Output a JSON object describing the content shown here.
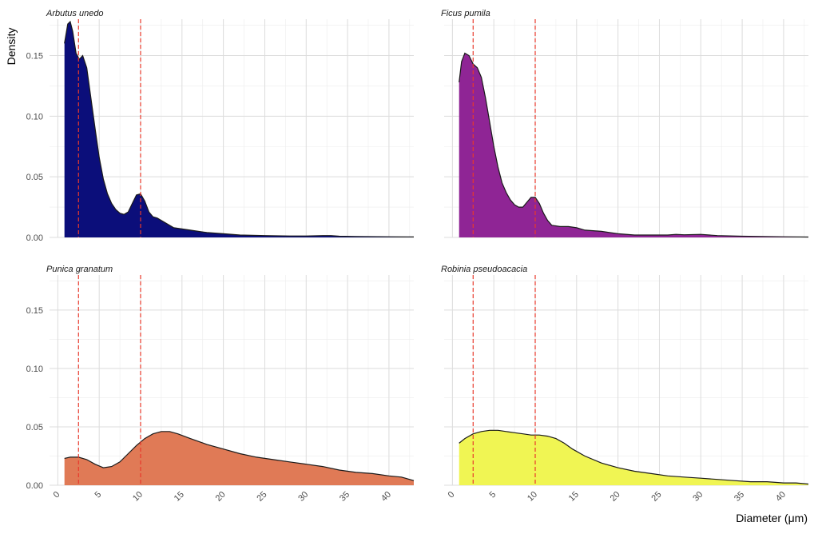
{
  "chart_data": {
    "type": "area",
    "xlabel": "Diameter (μm)",
    "ylabel": "Density",
    "xlim": [
      -1,
      43
    ],
    "ylim": [
      0,
      0.18
    ],
    "x_ticks": [
      0,
      5,
      10,
      15,
      20,
      25,
      30,
      35,
      40
    ],
    "y_ticks": [
      0.0,
      0.05,
      0.1,
      0.15
    ],
    "y_tick_labels": [
      "0.00",
      "0.05",
      "0.10",
      "0.15"
    ],
    "reference_lines_x": [
      2.5,
      10
    ],
    "reference_line_color": "#e8392b",
    "grid": true,
    "panels": [
      {
        "name": "Arbutus unedo",
        "fill": "#0b0e7a",
        "x": [
          0.8,
          1.2,
          1.5,
          1.8,
          2.2,
          2.6,
          3.0,
          3.5,
          4.0,
          4.5,
          5.0,
          5.5,
          6.0,
          6.5,
          7.0,
          7.5,
          8.0,
          8.5,
          9.0,
          9.5,
          10.0,
          10.5,
          11.0,
          11.5,
          12.0,
          13.0,
          14.0,
          16.0,
          18.0,
          20.0,
          22.0,
          25.0,
          28.0,
          30.0,
          32.0,
          33.0,
          34.0,
          36.0,
          40.0,
          43.0
        ],
        "y": [
          0.16,
          0.176,
          0.178,
          0.17,
          0.152,
          0.147,
          0.15,
          0.14,
          0.115,
          0.09,
          0.066,
          0.048,
          0.036,
          0.028,
          0.023,
          0.02,
          0.019,
          0.021,
          0.028,
          0.035,
          0.036,
          0.03,
          0.021,
          0.017,
          0.016,
          0.012,
          0.008,
          0.006,
          0.004,
          0.003,
          0.002,
          0.0015,
          0.0012,
          0.0012,
          0.0015,
          0.0015,
          0.001,
          0.0008,
          0.0005,
          0.0004
        ]
      },
      {
        "name": "Ficus pumila",
        "fill": "#8f2595",
        "x": [
          0.8,
          1.1,
          1.5,
          2.0,
          2.5,
          3.0,
          3.5,
          4.0,
          4.5,
          5.0,
          5.5,
          6.0,
          6.5,
          7.0,
          7.5,
          8.0,
          8.5,
          9.0,
          9.5,
          10.0,
          10.5,
          11.0,
          11.5,
          12.0,
          13.0,
          14.0,
          15.0,
          16.0,
          18.0,
          20.0,
          22.0,
          24.0,
          26.0,
          27.0,
          28.0,
          30.0,
          32.0,
          35.0,
          40.0,
          43.0
        ],
        "y": [
          0.128,
          0.145,
          0.152,
          0.15,
          0.143,
          0.14,
          0.132,
          0.115,
          0.095,
          0.075,
          0.058,
          0.045,
          0.037,
          0.031,
          0.027,
          0.025,
          0.025,
          0.029,
          0.033,
          0.033,
          0.028,
          0.02,
          0.014,
          0.01,
          0.009,
          0.009,
          0.008,
          0.006,
          0.005,
          0.003,
          0.002,
          0.002,
          0.002,
          0.0025,
          0.0022,
          0.0025,
          0.0015,
          0.001,
          0.0005,
          0.0003
        ]
      },
      {
        "name": "Punica granatum",
        "fill": "#e07a56",
        "x": [
          0.8,
          1.5,
          2.5,
          3.5,
          4.5,
          5.5,
          6.5,
          7.5,
          8.5,
          9.5,
          10.5,
          11.5,
          12.5,
          13.5,
          14.5,
          16.0,
          18.0,
          20.0,
          22.0,
          24.0,
          26.0,
          28.0,
          30.0,
          32.0,
          34.0,
          36.0,
          38.0,
          40.0,
          41.5,
          43.0
        ],
        "y": [
          0.023,
          0.024,
          0.024,
          0.022,
          0.018,
          0.015,
          0.016,
          0.02,
          0.027,
          0.034,
          0.04,
          0.044,
          0.046,
          0.046,
          0.044,
          0.04,
          0.035,
          0.031,
          0.027,
          0.024,
          0.022,
          0.02,
          0.018,
          0.016,
          0.013,
          0.011,
          0.01,
          0.008,
          0.007,
          0.004
        ]
      },
      {
        "name": "Robinia pseudoacacia",
        "fill": "#f0f553",
        "x": [
          0.8,
          1.5,
          2.5,
          3.5,
          4.5,
          5.5,
          6.5,
          7.5,
          8.5,
          9.5,
          10.5,
          11.5,
          12.5,
          13.5,
          14.5,
          16.0,
          18.0,
          20.0,
          22.0,
          24.0,
          26.0,
          28.0,
          30.0,
          32.0,
          34.0,
          36.0,
          38.0,
          40.0,
          41.5,
          43.0
        ],
        "y": [
          0.036,
          0.04,
          0.044,
          0.046,
          0.047,
          0.047,
          0.046,
          0.045,
          0.044,
          0.043,
          0.043,
          0.042,
          0.04,
          0.036,
          0.031,
          0.025,
          0.019,
          0.015,
          0.012,
          0.01,
          0.008,
          0.007,
          0.006,
          0.005,
          0.004,
          0.003,
          0.003,
          0.002,
          0.002,
          0.001
        ]
      }
    ]
  }
}
